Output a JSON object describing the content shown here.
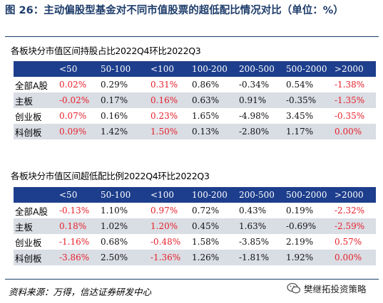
{
  "figure": {
    "title": "图 26：主动偏股型基金对不同市值股票的超低配比情况对比（单位：%）",
    "source": "资料来源：万得，信达证券研发中心",
    "watermark": "樊继拓投资策略",
    "watermark_icon": "wechat-icon"
  },
  "colors": {
    "header_bg": "#1d3e8c",
    "negative": "#e8202a",
    "alt_row": "#d9dde4",
    "title": "#1e3d6b"
  },
  "tables": [
    {
      "title": "各板块分市值区间持股占比2022Q4环比2022Q3",
      "columns": [
        "",
        "<50",
        "50-100",
        "<100",
        "100-200",
        "200-500",
        "500-2000",
        ">2000"
      ],
      "rows": [
        {
          "label": "全部A股",
          "values": [
            "0.02%",
            "0.29%",
            "0.31%",
            "0.86%",
            "-0.34%",
            "0.54%",
            "-1.38%"
          ]
        },
        {
          "label": "主板",
          "values": [
            "-0.02%",
            "0.17%",
            "0.16%",
            "0.63%",
            "0.91%",
            "-0.35%",
            "-1.35%"
          ]
        },
        {
          "label": "创业板",
          "values": [
            "0.07%",
            "0.16%",
            "0.23%",
            "1.65%",
            "-4.98%",
            "3.45%",
            "-0.35%"
          ]
        },
        {
          "label": "科创板",
          "values": [
            "0.09%",
            "1.42%",
            "1.50%",
            "0.13%",
            "-2.80%",
            "1.17%",
            "0.00%"
          ]
        }
      ]
    },
    {
      "title": "各板块分市值区间超低配比例2022Q4环比2022Q3",
      "columns": [
        "",
        "<50",
        "50-100",
        "<100",
        "100-200",
        "200-500",
        "500-2000",
        ">2000"
      ],
      "rows": [
        {
          "label": "全部A股",
          "values": [
            "-0.13%",
            "1.10%",
            "0.97%",
            "0.72%",
            "0.43%",
            "0.19%",
            "-2.32%"
          ]
        },
        {
          "label": "主板",
          "values": [
            "0.18%",
            "1.02%",
            "1.20%",
            "0.45%",
            "1.63%",
            "-0.69%",
            "-2.59%"
          ]
        },
        {
          "label": "创业板",
          "values": [
            "-1.16%",
            "0.68%",
            "-0.48%",
            "1.58%",
            "-3.85%",
            "2.19%",
            "0.57%"
          ]
        },
        {
          "label": "科创板",
          "values": [
            "-3.86%",
            "2.50%",
            "-1.36%",
            "1.26%",
            "-1.81%",
            "1.92%",
            "0.00%"
          ]
        }
      ]
    }
  ],
  "red_cells": [
    [
      [
        0,
        0
      ],
      [
        0,
        2
      ],
      [
        0,
        6
      ],
      [
        1,
        0
      ],
      [
        1,
        2
      ],
      [
        1,
        6
      ],
      [
        2,
        0
      ],
      [
        2,
        2
      ],
      [
        2,
        6
      ],
      [
        3,
        0
      ],
      [
        3,
        2
      ],
      [
        3,
        6
      ]
    ],
    [
      [
        0,
        0
      ],
      [
        0,
        2
      ],
      [
        0,
        6
      ],
      [
        1,
        0
      ],
      [
        1,
        2
      ],
      [
        1,
        6
      ],
      [
        2,
        0
      ],
      [
        2,
        2
      ],
      [
        2,
        6
      ],
      [
        3,
        0
      ],
      [
        3,
        2
      ],
      [
        3,
        6
      ]
    ]
  ]
}
